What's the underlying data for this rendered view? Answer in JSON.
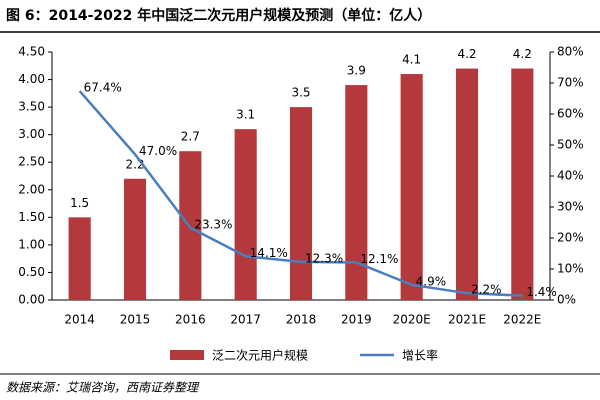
{
  "chart_data": {
    "type": "combo",
    "title": "图 6：2014-2022 年中国泛二次元用户规模及预测（单位：亿人）",
    "source": "数据来源：艾瑞咨询，西南证券整理",
    "categories": [
      "2014",
      "2015",
      "2016",
      "2017",
      "2018",
      "2019",
      "2020E",
      "2021E",
      "2022E"
    ],
    "series": [
      {
        "name": "泛二次元用户规模",
        "type": "bar",
        "color": "#b4393d",
        "values": [
          1.5,
          2.2,
          2.7,
          3.1,
          3.5,
          3.9,
          4.1,
          4.2,
          4.2
        ]
      },
      {
        "name": "增长率",
        "type": "line",
        "axis": "y2",
        "color": "#4a7ebf",
        "values": [
          67.4,
          47.0,
          23.3,
          14.1,
          12.3,
          12.1,
          4.9,
          2.2,
          1.4
        ],
        "value_labels": [
          "67.4%",
          "47.0%",
          "23.3%",
          "14.1%",
          "12.3%",
          "12.1%",
          "4.9%",
          "2.2%",
          "1.4%"
        ]
      }
    ],
    "ylim": [
      0,
      4.5
    ],
    "yticks": [
      {
        "value": 0,
        "label": "0.00"
      },
      {
        "value": 0.5,
        "label": "0.50"
      },
      {
        "value": 1,
        "label": "1.00"
      },
      {
        "value": 1.5,
        "label": "1.50"
      },
      {
        "value": 2,
        "label": "2.00"
      },
      {
        "value": 2.5,
        "label": "2.50"
      },
      {
        "value": 3,
        "label": "3.00"
      },
      {
        "value": 3.5,
        "label": "3.50"
      },
      {
        "value": 4,
        "label": "4.00"
      },
      {
        "value": 4.5,
        "label": "4.50"
      }
    ],
    "y2lim": [
      0,
      80
    ],
    "y2ticks": [
      {
        "value": 0,
        "label": "0%"
      },
      {
        "value": 10,
        "label": "10%"
      },
      {
        "value": 20,
        "label": "20%"
      },
      {
        "value": 30,
        "label": "30%"
      },
      {
        "value": 40,
        "label": "40%"
      },
      {
        "value": 50,
        "label": "50%"
      },
      {
        "value": 60,
        "label": "60%"
      },
      {
        "value": 70,
        "label": "70%"
      },
      {
        "value": 80,
        "label": "80%"
      }
    ],
    "grid": false
  }
}
